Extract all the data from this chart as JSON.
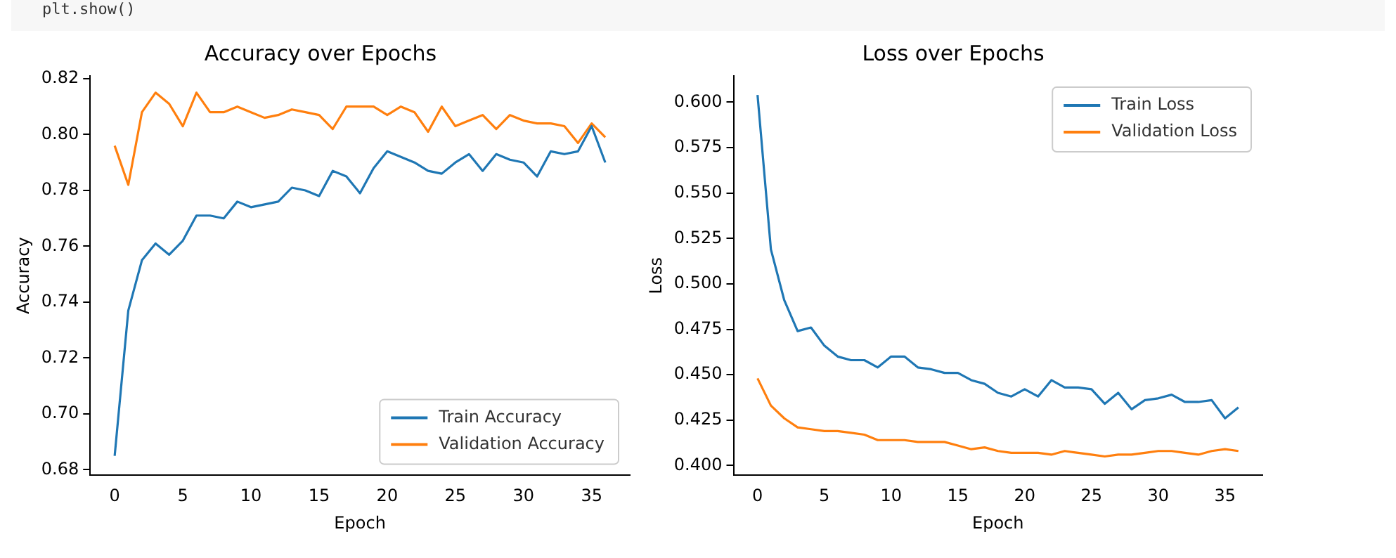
{
  "chart_data": [
    {
      "type": "line",
      "title": "Accuracy over Epochs",
      "xlabel": "Epoch",
      "ylabel": "Accuracy",
      "annotations": [
        "plt.show()"
      ],
      "x": [
        0,
        1,
        2,
        3,
        4,
        5,
        6,
        7,
        8,
        9,
        10,
        11,
        12,
        13,
        14,
        15,
        16,
        17,
        18,
        19,
        20,
        21,
        22,
        23,
        24,
        25,
        26,
        27,
        28,
        29,
        30,
        31,
        32,
        33,
        34,
        35,
        36
      ],
      "series": [
        {
          "name": "Train Accuracy",
          "color": "#1f77b4",
          "values": [
            0.685,
            0.737,
            0.755,
            0.761,
            0.757,
            0.762,
            0.771,
            0.771,
            0.77,
            0.776,
            0.774,
            0.775,
            0.776,
            0.781,
            0.78,
            0.778,
            0.787,
            0.785,
            0.779,
            0.788,
            0.794,
            0.792,
            0.79,
            0.787,
            0.786,
            0.79,
            0.793,
            0.787,
            0.793,
            0.791,
            0.79,
            0.785,
            0.794,
            0.793,
            0.794,
            0.803,
            0.79
          ]
        },
        {
          "name": "Validation Accuracy",
          "color": "#ff7f0e",
          "values": [
            0.796,
            0.782,
            0.808,
            0.815,
            0.811,
            0.803,
            0.815,
            0.808,
            0.808,
            0.81,
            0.808,
            0.806,
            0.807,
            0.809,
            0.808,
            0.807,
            0.802,
            0.81,
            0.81,
            0.81,
            0.807,
            0.81,
            0.808,
            0.801,
            0.81,
            0.803,
            0.805,
            0.807,
            0.802,
            0.807,
            0.805,
            0.804,
            0.804,
            0.803,
            0.797,
            0.804,
            0.799
          ]
        }
      ],
      "xlim": [
        -1.8,
        37.8
      ],
      "xticks": [
        0,
        5,
        10,
        15,
        20,
        25,
        30,
        35
      ],
      "ylim": [
        0.678,
        0.821
      ],
      "yticks": [
        0.68,
        {
          "value": 0.7,
          "label": "0.70"
        },
        0.72,
        0.74,
        0.76,
        0.78,
        {
          "value": 0.8,
          "label": "0.80"
        },
        0.82
      ],
      "legend": "bottom right",
      "grid": false,
      "marker": "none",
      "line_style": "solid"
    },
    {
      "type": "line",
      "title": "Loss over Epochs",
      "xlabel": "Epoch",
      "ylabel": "Loss",
      "x": [
        0,
        1,
        2,
        3,
        4,
        5,
        6,
        7,
        8,
        9,
        10,
        11,
        12,
        13,
        14,
        15,
        16,
        17,
        18,
        19,
        20,
        21,
        22,
        23,
        24,
        25,
        26,
        27,
        28,
        29,
        30,
        31,
        32,
        33,
        34,
        35,
        36
      ],
      "series": [
        {
          "name": "Train Loss",
          "color": "#1f77b4",
          "values": [
            0.604,
            0.519,
            0.491,
            0.474,
            0.476,
            0.466,
            0.46,
            0.458,
            0.458,
            0.454,
            0.46,
            0.46,
            0.454,
            0.453,
            0.451,
            0.451,
            0.447,
            0.445,
            0.44,
            0.438,
            0.442,
            0.438,
            0.447,
            0.443,
            0.443,
            0.442,
            0.434,
            0.44,
            0.431,
            0.436,
            0.437,
            0.439,
            0.435,
            0.435,
            0.436,
            0.426,
            0.432
          ]
        },
        {
          "name": "Validation Loss",
          "color": "#ff7f0e",
          "values": [
            0.448,
            0.433,
            0.426,
            0.421,
            0.42,
            0.419,
            0.419,
            0.418,
            0.417,
            0.414,
            0.414,
            0.414,
            0.413,
            0.413,
            0.413,
            0.411,
            0.409,
            0.41,
            0.408,
            0.407,
            0.407,
            0.407,
            0.406,
            0.408,
            0.407,
            0.406,
            0.405,
            0.406,
            0.406,
            0.407,
            0.408,
            0.408,
            0.407,
            0.406,
            0.408,
            0.409,
            0.408
          ]
        }
      ],
      "xlim": [
        -1.8,
        37.8
      ],
      "xticks": [
        0,
        5,
        10,
        15,
        20,
        25,
        30,
        35
      ],
      "ylim": [
        0.3946,
        0.6145
      ],
      "yticks": [
        {
          "value": 0.4,
          "label": "0.400"
        },
        {
          "value": 0.425,
          "label": "0.425"
        },
        {
          "value": 0.45,
          "label": "0.450"
        },
        {
          "value": 0.475,
          "label": "0.475"
        },
        {
          "value": 0.5,
          "label": "0.500"
        },
        {
          "value": 0.525,
          "label": "0.525"
        },
        {
          "value": 0.55,
          "label": "0.550"
        },
        {
          "value": 0.575,
          "label": "0.575"
        },
        {
          "value": 0.6,
          "label": "0.600"
        }
      ],
      "legend": "top right",
      "grid": false,
      "marker": "none",
      "line_style": "solid"
    }
  ]
}
